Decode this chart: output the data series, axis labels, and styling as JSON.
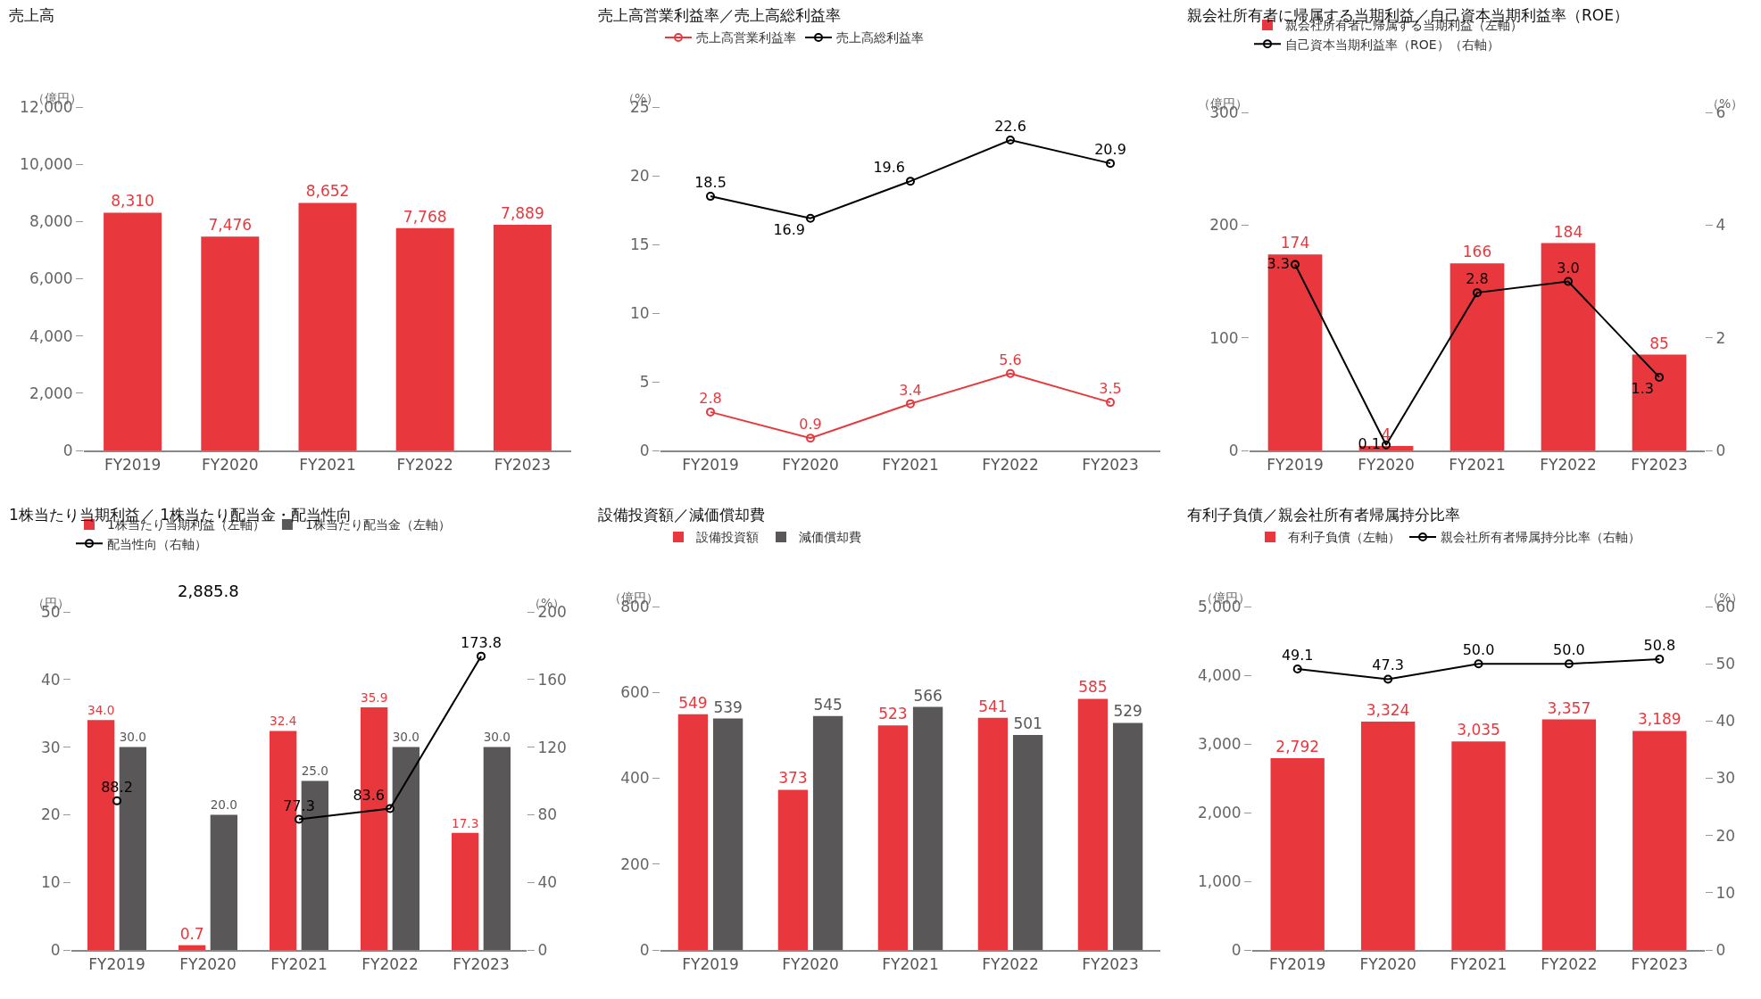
{
  "chart_data": [
    {
      "type": "bar",
      "title": "売上高",
      "ylabel": "（億円）",
      "categories": [
        "FY2019",
        "FY2020",
        "FY2021",
        "FY2022",
        "FY2023"
      ],
      "series": [
        {
          "color": "#e8383d",
          "values": [
            8310,
            7476,
            8652,
            7768,
            7889
          ],
          "value_labels": [
            "8,310",
            "7,476",
            "8,652",
            "7,768",
            "7,889"
          ]
        }
      ],
      "ylim": [
        0,
        12000
      ],
      "yticks": [
        0,
        {
          "value": 2000,
          "label": "2,000"
        },
        {
          "value": 4000,
          "label": "4,000"
        },
        {
          "value": 6000,
          "label": "6,000"
        },
        {
          "value": 8000,
          "label": "8,000"
        },
        {
          "value": 10000,
          "label": "10,000"
        },
        {
          "value": 12000,
          "label": "12,000"
        }
      ]
    },
    {
      "type": "line",
      "title": "売上高営業利益率／売上高総利益率",
      "ylabel": "（%）",
      "categories": [
        "FY2019",
        "FY2020",
        "FY2021",
        "FY2022",
        "FY2023"
      ],
      "marker": "circle",
      "legend": "top left",
      "series": [
        {
          "name": "売上高営業利益率",
          "color": "#e8383d",
          "values": [
            2.8,
            0.9,
            3.4,
            5.6,
            3.5
          ],
          "value_labels": [
            "2.8",
            "0.9",
            "3.4",
            "5.6",
            "3.5"
          ]
        },
        {
          "name": "売上高総利益率",
          "color": "#000000",
          "values": [
            18.5,
            16.9,
            19.6,
            22.6,
            20.9
          ],
          "value_labels": [
            "18.5",
            "16.9",
            "19.6",
            "22.6",
            "20.9"
          ]
        }
      ],
      "ylim": [
        0,
        25
      ],
      "yticks": [
        0,
        5,
        10,
        15,
        20,
        25
      ]
    },
    {
      "type": "bar",
      "title": "親会社所有者に帰属する当期利益／自己資本当期利益率（ROE）",
      "ylabel": "（億円）",
      "y2label": "（%）",
      "categories": [
        "FY2019",
        "FY2020",
        "FY2021",
        "FY2022",
        "FY2023"
      ],
      "marker": "circle",
      "legend": "top left",
      "series": [
        {
          "name": "親会社所有者に帰属する当期利益（左軸）",
          "color": "#e8383d",
          "values": [
            174,
            4,
            166,
            184,
            85
          ],
          "value_labels": [
            "174",
            "4",
            "166",
            "184",
            "85"
          ]
        },
        {
          "type": "line",
          "axis": "y2",
          "name": "自己資本当期利益率（ROE）（右軸）",
          "color": "#000000",
          "values": [
            3.3,
            0.1,
            2.8,
            3.0,
            1.3
          ],
          "value_labels": [
            "3.3",
            "0.1",
            "2.8",
            "3.0",
            "1.3"
          ]
        }
      ],
      "ylim": [
        0,
        300
      ],
      "yticks": [
        0,
        100,
        200,
        300
      ],
      "y2lim": [
        0,
        6
      ],
      "y2ticks": [
        0,
        2,
        4,
        6
      ]
    },
    {
      "type": "bar",
      "title": "1株当たり当期利益／ 1株当たり配当金・配当性向",
      "ylabel": "（円）",
      "y2label": "（%）",
      "categories": [
        "FY2019",
        "FY2020",
        "FY2021",
        "FY2022",
        "FY2023"
      ],
      "marker": "circle",
      "legend": "top left",
      "series": [
        {
          "name": "1株当たり当期利益（左軸）",
          "color": "#e8383d",
          "values": [
            34.0,
            0.7,
            32.4,
            35.9,
            17.3
          ],
          "value_labels": [
            "34.0",
            "0.7",
            "32.4",
            "35.9",
            "17.3"
          ]
        },
        {
          "name": "1株当たり配当金（左軸）",
          "color": "#595757",
          "values": [
            30.0,
            20.0,
            25.0,
            30.0,
            30.0
          ],
          "value_labels": [
            "30.0",
            "20.0",
            "25.0",
            "30.0",
            "30.0"
          ]
        },
        {
          "type": "line",
          "axis": "y2",
          "name": "配当性向（右軸）",
          "color": "#000000",
          "values": [
            88.2,
            null,
            77.3,
            83.6,
            173.8
          ],
          "value_labels": [
            "88.2",
            null,
            "77.3",
            "83.6",
            "173.8"
          ]
        }
      ],
      "annotations": [
        "2,885.8"
      ],
      "ylim": [
        0,
        50
      ],
      "yticks": [
        0,
        10,
        20,
        30,
        40,
        50
      ],
      "y2lim": [
        0,
        200
      ],
      "y2ticks": [
        0,
        40,
        80,
        120,
        160,
        200
      ]
    },
    {
      "type": "bar",
      "title": "設備投資額／減価償却費",
      "ylabel": "（億円）",
      "categories": [
        "FY2019",
        "FY2020",
        "FY2021",
        "FY2022",
        "FY2023"
      ],
      "legend": "top left",
      "series": [
        {
          "name": "設備投資額",
          "color": "#e8383d",
          "values": [
            549,
            373,
            523,
            541,
            585
          ],
          "value_labels": [
            "549",
            "373",
            "523",
            "541",
            "585"
          ]
        },
        {
          "name": "減価償却費",
          "color": "#595757",
          "values": [
            539,
            545,
            566,
            501,
            529
          ],
          "value_labels": [
            "539",
            "545",
            "566",
            "501",
            "529"
          ]
        }
      ],
      "ylim": [
        0,
        800
      ],
      "yticks": [
        0,
        200,
        400,
        600,
        800
      ]
    },
    {
      "type": "bar",
      "title": "有利子負債／親会社所有者帰属持分比率",
      "ylabel": "（億円）",
      "y2label": "（%）",
      "categories": [
        "FY2019",
        "FY2020",
        "FY2021",
        "FY2022",
        "FY2023"
      ],
      "marker": "circle",
      "legend": "top left",
      "series": [
        {
          "name": "有利子負債（左軸）",
          "color": "#e8383d",
          "values": [
            2792,
            3324,
            3035,
            3357,
            3189
          ],
          "value_labels": [
            "2,792",
            "3,324",
            "3,035",
            "3,357",
            "3,189"
          ]
        },
        {
          "type": "line",
          "axis": "y2",
          "name": "親会社所有者帰属持分比率（右軸）",
          "color": "#000000",
          "values": [
            49.1,
            47.3,
            50.0,
            50.0,
            50.8
          ],
          "value_labels": [
            "49.1",
            "47.3",
            "50.0",
            "50.0",
            "50.8"
          ]
        }
      ],
      "ylim": [
        0,
        5000
      ],
      "yticks": [
        0,
        {
          "value": 1000,
          "label": "1,000"
        },
        {
          "value": 2000,
          "label": "2,000"
        },
        {
          "value": 3000,
          "label": "3,000"
        },
        {
          "value": 4000,
          "label": "4,000"
        },
        {
          "value": 5000,
          "label": "5,000"
        }
      ],
      "y2lim": [
        0,
        60
      ],
      "y2ticks": [
        0,
        10,
        20,
        30,
        40,
        50,
        60
      ]
    }
  ]
}
